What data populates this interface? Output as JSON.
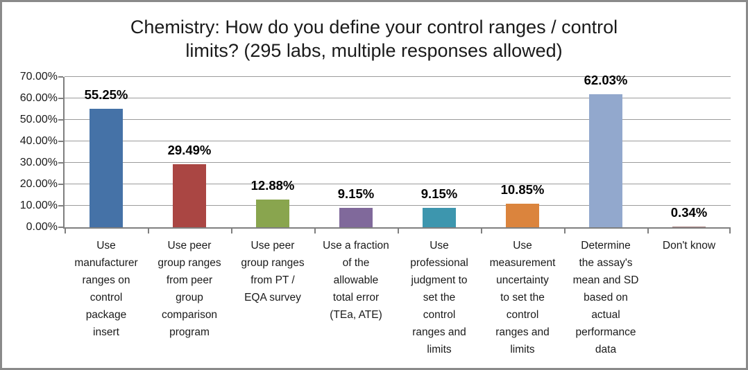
{
  "chart_data": {
    "type": "bar",
    "title": "Chemistry: How do you define your control ranges / control limits? (295 labs, multiple responses allowed)",
    "title_lines": [
      "Chemistry: How do you define your control ranges / control",
      "limits? (295 labs, multiple responses allowed)"
    ],
    "categories": [
      "Use manufacturer ranges on control package insert",
      "Use peer group ranges from peer group comparison program",
      "Use peer group ranges from PT / EQA survey",
      "Use a fraction of the allowable total error (TEa, ATE)",
      "Use professional judgment to set the control ranges and limits",
      "Use measurement uncertainty to set the control ranges and limits",
      "Determine the assay's mean and SD based on actual performance data",
      "Don't know"
    ],
    "category_lines": [
      [
        "Use",
        "manufacturer",
        "ranges on",
        "control",
        "package",
        "insert"
      ],
      [
        "Use peer",
        "group ranges",
        "from peer",
        "group",
        "comparison",
        "program"
      ],
      [
        "Use peer",
        "group ranges",
        "from PT /",
        "EQA survey"
      ],
      [
        "Use a fraction",
        "of the",
        "allowable",
        "total error",
        "(TEa, ATE)"
      ],
      [
        "Use",
        "professional",
        "judgment to",
        "set the",
        "control",
        "ranges and",
        "limits"
      ],
      [
        "Use",
        "measurement",
        "uncertainty",
        "to set the",
        "control",
        "ranges and",
        "limits"
      ],
      [
        "Determine",
        "the assay's",
        "mean and SD",
        "based on",
        "actual",
        "performance",
        "data"
      ],
      [
        "Don't know"
      ]
    ],
    "values": [
      55.25,
      29.49,
      12.88,
      9.15,
      9.15,
      10.85,
      62.03,
      0.34
    ],
    "value_labels": [
      "55.25%",
      "29.49%",
      "12.88%",
      "9.15%",
      "9.15%",
      "10.85%",
      "62.03%",
      "0.34%"
    ],
    "bar_colors": [
      "#4572A7",
      "#AA4643",
      "#89A54E",
      "#80699B",
      "#3D96AE",
      "#DB843D",
      "#92A8CD",
      "#A47D7C"
    ],
    "xlabel": "",
    "ylabel": "",
    "ylim": [
      0,
      70
    ],
    "ytick_step": 10,
    "ytick_labels": [
      "0.00%",
      "10.00%",
      "20.00%",
      "30.00%",
      "40.00%",
      "50.00%",
      "60.00%",
      "70.00%"
    ],
    "grid": true,
    "legend": false
  },
  "style_colors": {
    "frame_border": "#8a8a8a",
    "axis": "#7f7f7f",
    "gridline": "#9b9b9b",
    "text": "#1a1a1a",
    "data_label": "#000000"
  }
}
